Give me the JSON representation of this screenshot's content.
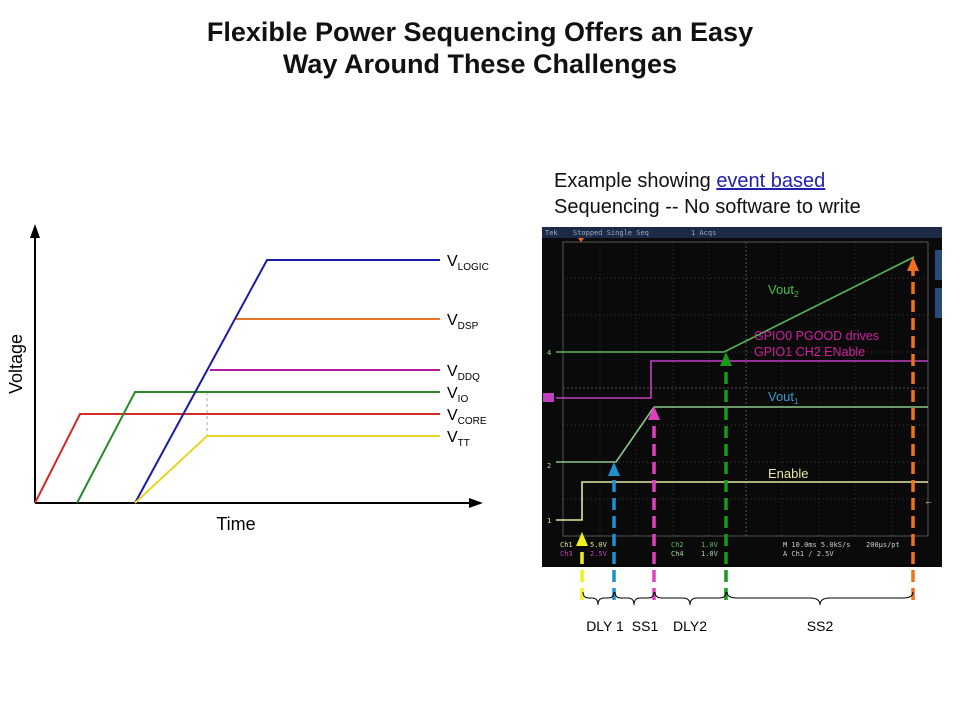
{
  "title": {
    "line1": "Flexible Power Sequencing Offers an Easy",
    "line2": "Way Around These Challenges"
  },
  "example": {
    "line1_prefix": "Example showing ",
    "line1_link": "event based ",
    "line2": "Sequencing -- No software to write"
  },
  "diagram": {
    "ylabel": "Voltage",
    "xlabel": "Time",
    "rails": [
      {
        "main": "V",
        "sub": "LOGIC",
        "color": "#1a1aa6"
      },
      {
        "main": "V",
        "sub": "DSP",
        "color": "#e8742a"
      },
      {
        "main": "V",
        "sub": "DDQ",
        "color": "#b01aa6"
      },
      {
        "main": "V",
        "sub": "IO",
        "color": "#2a8a2a"
      },
      {
        "main": "V",
        "sub": "CORE",
        "color": "#d42a2a"
      },
      {
        "main": "V",
        "sub": "TT",
        "color": "#e8d42a"
      }
    ]
  },
  "scope": {
    "header": {
      "brand": "Tek",
      "state": "Stopped  Single Seq",
      "acqs": "1 Acqs"
    },
    "labels": {
      "vout2_main": "Vout",
      "vout2_sub": "2",
      "gpio_line1": "GPIO0 PGOOD drives",
      "gpio_line2": "GPIO1 CH2 ENable",
      "vout1_main": "Vout",
      "vout1_sub": "1",
      "enable": "Enable"
    },
    "markers": {
      "m4": "4",
      "m2": "2",
      "m1": "1"
    },
    "footer": {
      "ch1": "Ch1",
      "ch1v": "5.0V",
      "ch3": "Ch3",
      "ch3v": "2.5V",
      "ch2": "Ch2",
      "ch2v": "1.0V",
      "ch4": "Ch4",
      "ch4v": "1.0V",
      "timebase": "M 10.0ms 5.0kS/s",
      "sample": "200µs/pt",
      "trigger": "A  Ch1  ∕  2.5V"
    },
    "colors": {
      "ch1": "#e6e6a0",
      "ch2": "#5ab95a",
      "ch3": "#c040c0",
      "ch4": "#b0d4b0"
    }
  },
  "intervals": [
    {
      "label": "DLY 1"
    },
    {
      "label": "SS1"
    },
    {
      "label": "DLY2"
    },
    {
      "label": "SS2"
    }
  ],
  "arrow_colors": [
    "#f0f020",
    "#1e90d0",
    "#e040c0",
    "#1a9a1a",
    "#f07020"
  ]
}
